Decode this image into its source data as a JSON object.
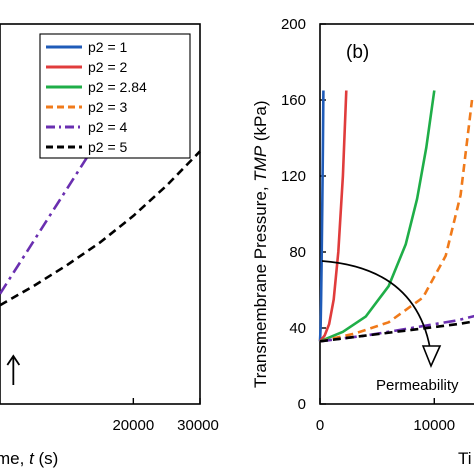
{
  "chart_data": [
    {
      "type": "line",
      "panel": "a",
      "xlabel": "Time, t (s)",
      "xlabel_visible": "me, t (s)",
      "xlim": [
        0,
        30000
      ],
      "x_ticks": [
        20000,
        30000
      ],
      "x_tick_labels": [
        "20000",
        "30000"
      ],
      "ylim": [
        0,
        200
      ],
      "legend": {
        "placement": "top-right",
        "entries": [
          {
            "label": "p2 = 1",
            "color": "#1f5bb8",
            "style": "solid"
          },
          {
            "label": "p2 = 2",
            "color": "#e03c3c",
            "style": "solid"
          },
          {
            "label": "p2 = 2.84",
            "color": "#1fae48",
            "style": "solid"
          },
          {
            "label": "p2 = 3",
            "color": "#f07a1a",
            "style": "dashed"
          },
          {
            "label": "p2 = 4",
            "color": "#6a2fb0",
            "style": "dashdot"
          },
          {
            "label": "p2 = 5",
            "color": "#000000",
            "style": "dashed"
          }
        ]
      },
      "series": [
        {
          "name": "p2 = 4",
          "color": "#6a2fb0",
          "style": "dashdot",
          "x": [
            0,
            4000,
            8000,
            12000,
            16000,
            20000
          ],
          "y": [
            58,
            80,
            102,
            124,
            146,
            168
          ]
        },
        {
          "name": "p2 = 5",
          "color": "#000000",
          "style": "dashed",
          "x": [
            0,
            5000,
            10000,
            15000,
            20000,
            25000,
            30000
          ],
          "y": [
            52,
            62,
            73,
            85,
            99,
            115,
            133
          ]
        }
      ],
      "annotations": [
        {
          "type": "arrow",
          "direction": "up",
          "at": [
            2000,
            10
          ]
        }
      ]
    },
    {
      "type": "line",
      "panel": "b",
      "panel_label": "(b)",
      "ylabel_prefix": "Transmembrane Pressure, ",
      "ylabel_italic": "TMP",
      "ylabel_suffix": " (kPa)",
      "xlabel_visible": "Ti",
      "xlim": [
        0,
        14000
      ],
      "ylim": [
        0,
        200
      ],
      "y_ticks": [
        0,
        40,
        80,
        120,
        160,
        200
      ],
      "y_tick_labels": [
        "0",
        "40",
        "80",
        "120",
        "160",
        "200"
      ],
      "x_ticks": [
        0,
        10000
      ],
      "x_tick_labels": [
        "0",
        "10000"
      ],
      "series": [
        {
          "name": "p2 = 1",
          "color": "#1f5bb8",
          "style": "solid",
          "x": [
            0,
            50,
            100,
            150,
            200,
            250,
            300
          ],
          "y": [
            33,
            40,
            55,
            78,
            105,
            135,
            165
          ]
        },
        {
          "name": "p2 = 2",
          "color": "#e03c3c",
          "style": "solid",
          "x": [
            0,
            400,
            800,
            1200,
            1600,
            2000,
            2300
          ],
          "y": [
            33,
            36,
            42,
            55,
            80,
            120,
            165
          ]
        },
        {
          "name": "p2 = 2.84",
          "color": "#1fae48",
          "style": "solid",
          "x": [
            0,
            2000,
            4000,
            6000,
            7500,
            8500,
            9300,
            10000
          ],
          "y": [
            33,
            38,
            46,
            62,
            84,
            108,
            135,
            165
          ]
        },
        {
          "name": "p2 = 3",
          "color": "#f07a1a",
          "style": "dashed",
          "x": [
            0,
            3000,
            6000,
            9000,
            11000,
            12300,
            13300
          ],
          "y": [
            33,
            37,
            43,
            56,
            78,
            110,
            160
          ]
        },
        {
          "name": "p2 = 4",
          "color": "#6a2fb0",
          "style": "dashdot",
          "x": [
            0,
            4000,
            8000,
            12000,
            14000
          ],
          "y": [
            33,
            36,
            40,
            44,
            47
          ]
        },
        {
          "name": "p2 = 5",
          "color": "#000000",
          "style": "dashed",
          "x": [
            0,
            4000,
            8000,
            12000,
            14000
          ],
          "y": [
            33,
            36,
            39,
            42,
            44
          ]
        }
      ],
      "annotation": {
        "text": "Permeability",
        "arrow": "curved arc from upper-left bending down-right"
      }
    }
  ]
}
